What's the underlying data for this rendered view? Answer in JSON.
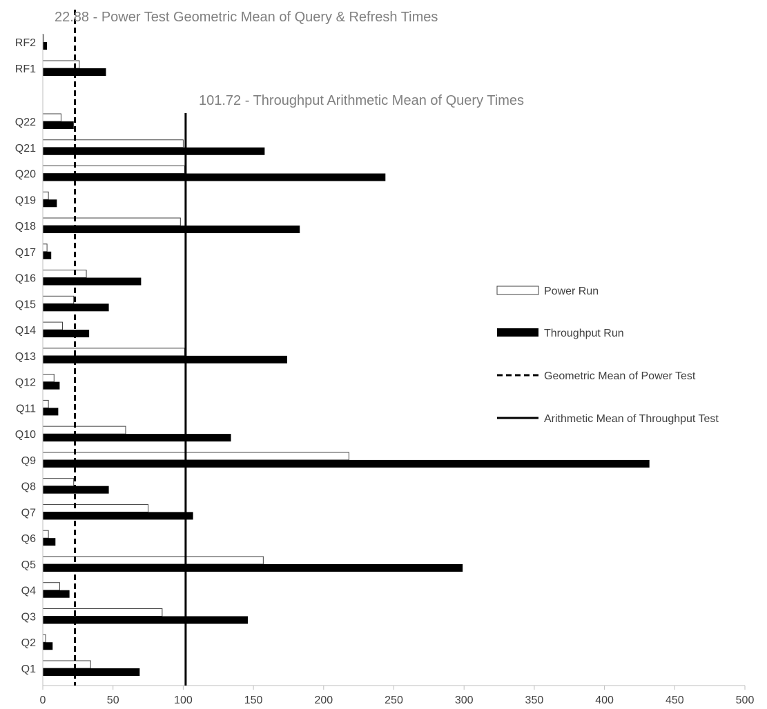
{
  "chart_data": {
    "type": "bar",
    "orientation": "horizontal",
    "categories": [
      "RF2",
      "RF1",
      "Q22",
      "Q21",
      "Q20",
      "Q19",
      "Q18",
      "Q17",
      "Q16",
      "Q15",
      "Q14",
      "Q13",
      "Q12",
      "Q11",
      "Q10",
      "Q9",
      "Q8",
      "Q7",
      "Q6",
      "Q5",
      "Q4",
      "Q3",
      "Q2",
      "Q1"
    ],
    "series": [
      {
        "name": "Power Run",
        "style": "outline",
        "values": [
          0.5,
          26,
          13,
          100,
          101,
          4,
          98,
          3,
          31,
          22,
          14,
          101,
          8,
          4,
          59,
          218,
          22,
          75,
          4,
          157,
          12,
          85,
          2,
          34
        ]
      },
      {
        "name": "Throughput Run",
        "style": "solid",
        "values": [
          3,
          45,
          22,
          158,
          244,
          10,
          183,
          6,
          70,
          47,
          33,
          174,
          12,
          11,
          134,
          432,
          47,
          107,
          9,
          299,
          19,
          146,
          7,
          69
        ]
      }
    ],
    "reference_lines": [
      {
        "name": "Geometric Mean of Power Test",
        "value": 22.88,
        "style": "dashed",
        "annotation": "22.88 - Power Test Geometric Mean of Query & Refresh Times"
      },
      {
        "name": "Arithmetic Mean of Throughput Test",
        "value": 101.72,
        "style": "solid",
        "annotation": "101.72 - Throughput Arithmetic Mean of Query Times"
      }
    ],
    "xlim": [
      0,
      500
    ],
    "xticks": [
      0,
      50,
      100,
      150,
      200,
      250,
      300,
      350,
      400,
      450,
      500
    ],
    "grid": false,
    "legend_position": "right",
    "colors": {
      "bar_fill": "#000000",
      "bar_outline": "#404040",
      "axis": "#bfbfbf",
      "text": "#404040",
      "annotation": "#808080"
    }
  }
}
